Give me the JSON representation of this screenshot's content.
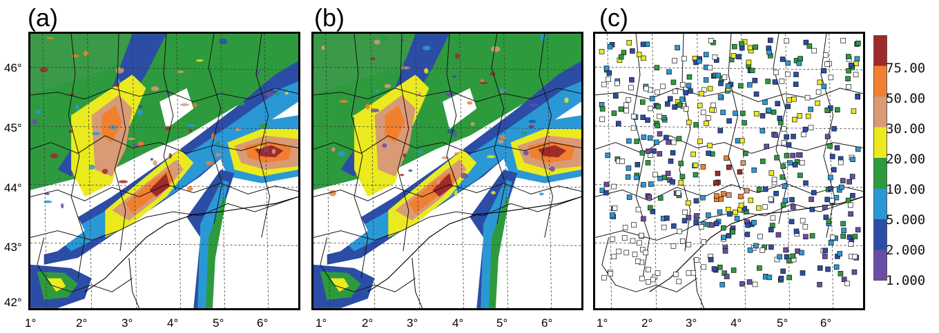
{
  "panels": [
    {
      "label": "(a)"
    },
    {
      "label": "(b)"
    },
    {
      "label": "(c)"
    }
  ],
  "lat_ticks": [
    "46°",
    "45°",
    "44°",
    "43°",
    "42°"
  ],
  "lon_ticks": [
    "1°",
    "2°",
    "3°",
    "4°",
    "5°",
    "6°"
  ],
  "colorbar": {
    "labels": [
      "75.00",
      "50.00",
      "30.00",
      "20.00",
      "10.00",
      "5.000",
      "2.000",
      "1.000"
    ],
    "colors": [
      "#9e2a2b",
      "#f08030",
      "#d99a76",
      "#eaea1f",
      "#2e9a3e",
      "#2b98d6",
      "#2c4da6",
      "#6a4ea5"
    ]
  },
  "palette": {
    "gt75": "#9e2a2b",
    "c50_75": "#f08030",
    "c30_50": "#d99a76",
    "c20_30": "#eaea1f",
    "c10_20": "#2e9a3e",
    "c5_10": "#2b98d6",
    "c2_5": "#2c4da6",
    "c1_2": "#6a4ea5"
  }
}
